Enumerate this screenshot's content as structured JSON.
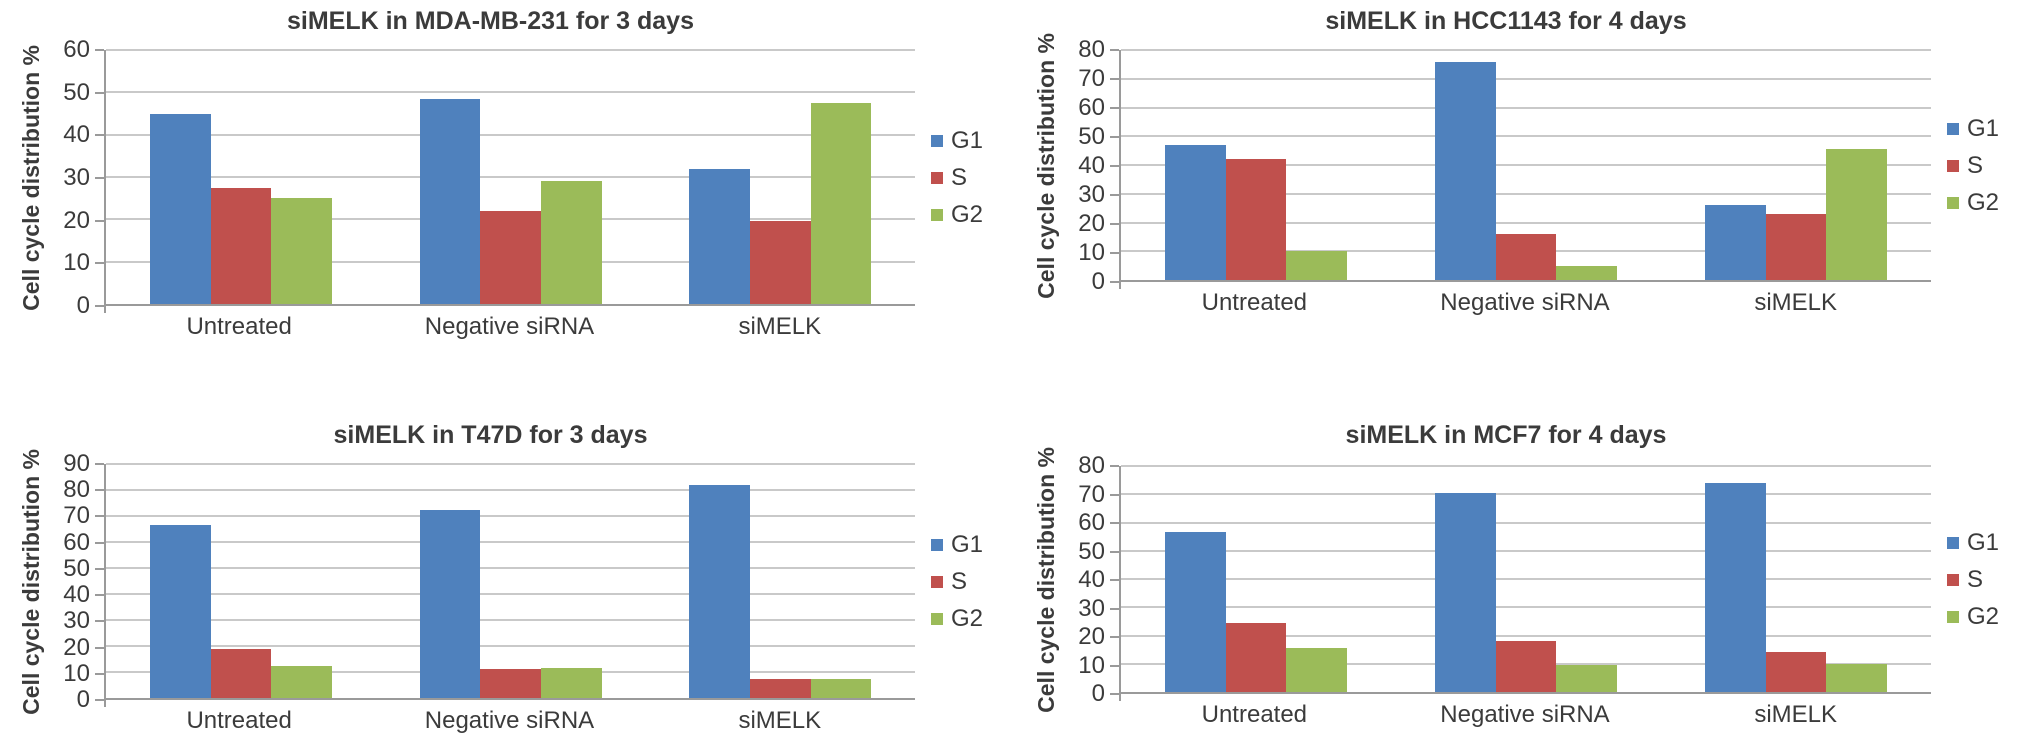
{
  "style": {
    "background": "#ffffff",
    "text_color": "#3b3b3b",
    "axis_color": "#9a9a9a",
    "grid_color": "#c9c9c9",
    "series_colors": {
      "G1": "#4F81BD",
      "S": "#C0504D",
      "G2": "#9BBB59"
    }
  },
  "chart_data": [
    {
      "type": "bar",
      "title": "siMELK in MDA-MB-231 for 3 days",
      "xlabel": "",
      "ylabel": "Cell cycle distribution %",
      "ylim": [
        0,
        60
      ],
      "ytick_step": 10,
      "grid": true,
      "legend_position": "right",
      "categories": [
        "Untreated",
        "Negative siRNA",
        "siMELK"
      ],
      "series": [
        {
          "name": "G1",
          "color": "#4F81BD",
          "values": [
            45,
            48.5,
            32
          ]
        },
        {
          "name": "S",
          "color": "#C0504D",
          "values": [
            27.5,
            22,
            19.5
          ]
        },
        {
          "name": "G2",
          "color": "#9BBB59",
          "values": [
            25,
            29,
            47.5
          ]
        }
      ]
    },
    {
      "type": "bar",
      "title": "siMELK in HCC1143 for 4 days",
      "xlabel": "",
      "ylabel": "Cell cycle distribution %",
      "ylim": [
        0,
        80
      ],
      "ytick_step": 10,
      "grid": true,
      "legend_position": "right",
      "categories": [
        "Untreated",
        "Negative siRNA",
        "siMELK"
      ],
      "series": [
        {
          "name": "G1",
          "color": "#4F81BD",
          "values": [
            47,
            76,
            26
          ]
        },
        {
          "name": "S",
          "color": "#C0504D",
          "values": [
            42,
            16,
            23
          ]
        },
        {
          "name": "G2",
          "color": "#9BBB59",
          "values": [
            10,
            5,
            45.5
          ]
        }
      ]
    },
    {
      "type": "bar",
      "title": "siMELK in T47D for 3 days",
      "xlabel": "",
      "ylabel": "Cell cycle distribution %",
      "ylim": [
        0,
        90
      ],
      "ytick_step": 10,
      "grid": true,
      "legend_position": "right",
      "categories": [
        "Untreated",
        "Negative siRNA",
        "siMELK"
      ],
      "series": [
        {
          "name": "G1",
          "color": "#4F81BD",
          "values": [
            66.5,
            72.5,
            82
          ]
        },
        {
          "name": "S",
          "color": "#C0504D",
          "values": [
            19,
            11,
            7.5
          ]
        },
        {
          "name": "G2",
          "color": "#9BBB59",
          "values": [
            12.5,
            11.5,
            7.5
          ]
        }
      ]
    },
    {
      "type": "bar",
      "title": "siMELK in MCF7 for 4 days",
      "xlabel": "",
      "ylabel": "Cell cycle distribution %",
      "ylim": [
        0,
        80
      ],
      "ytick_step": 10,
      "grid": true,
      "legend_position": "right",
      "categories": [
        "Untreated",
        "Negative siRNA",
        "siMELK"
      ],
      "series": [
        {
          "name": "G1",
          "color": "#4F81BD",
          "values": [
            56.5,
            70.5,
            74
          ]
        },
        {
          "name": "S",
          "color": "#C0504D",
          "values": [
            24.5,
            18,
            14
          ]
        },
        {
          "name": "G2",
          "color": "#9BBB59",
          "values": [
            15.5,
            9.5,
            10
          ]
        }
      ]
    }
  ]
}
